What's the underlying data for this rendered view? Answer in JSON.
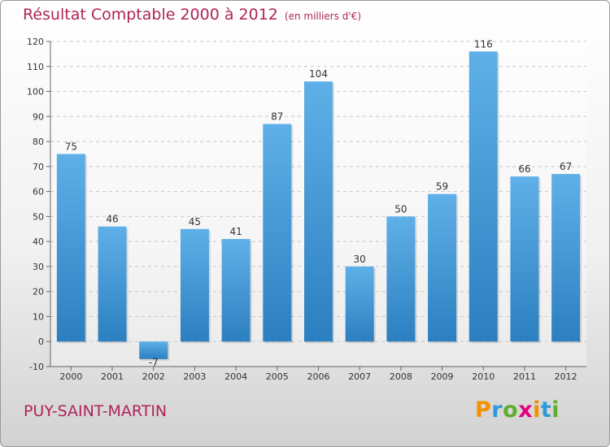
{
  "title": "Résultat Comptable 2000 à 2012",
  "unit_note": "(en milliers d'€)",
  "commune": "PUY-SAINT-MARTIN",
  "logo": {
    "text": "Proxiti",
    "letters": [
      "P",
      "r",
      "o",
      "x",
      "i",
      "t",
      "i"
    ],
    "colors": [
      "#f39200",
      "#2e9ad7",
      "#5fae2e",
      "#e3007d",
      "#f39200",
      "#2e9ad7",
      "#5fae2e"
    ]
  },
  "colors": {
    "title": "#b0245a",
    "bar_light": "#5fb0e8",
    "bar_dark": "#2c7fc0"
  },
  "chart_data": {
    "type": "bar",
    "categories": [
      "2000",
      "2001",
      "2002",
      "2003",
      "2004",
      "2005",
      "2006",
      "2007",
      "2008",
      "2009",
      "2010",
      "2011",
      "2012"
    ],
    "values": [
      75,
      46,
      -7,
      45,
      41,
      87,
      104,
      30,
      50,
      59,
      116,
      66,
      67
    ],
    "ylim": [
      -10,
      120
    ],
    "yticks": [
      -10,
      0,
      10,
      20,
      30,
      40,
      50,
      60,
      70,
      80,
      90,
      100,
      110,
      120
    ],
    "grid": true,
    "legend": "none"
  }
}
